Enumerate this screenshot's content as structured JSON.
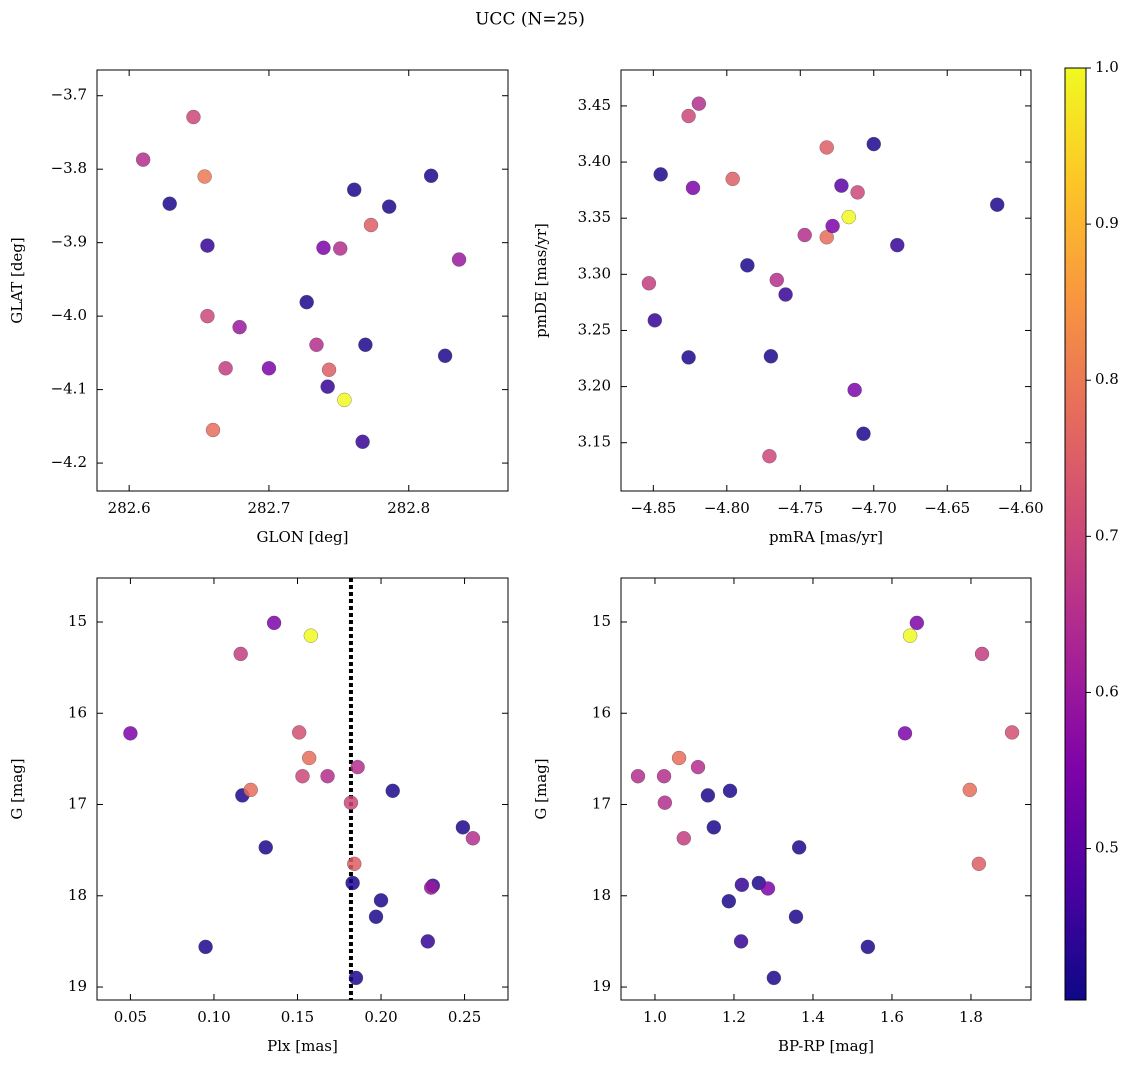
{
  "title": "UCC (N=25)",
  "chart_data": [
    {
      "type": "scatter",
      "x_label": "GLON [deg]",
      "y_label": "GLAT [deg]",
      "xlim": [
        282.577,
        282.871
      ],
      "ylim": [
        -4.238,
        -3.665
      ],
      "xticks": [
        282.6,
        282.7,
        282.8
      ],
      "yticks": [
        {
          "value": -3.7,
          "label": "−3.7"
        },
        {
          "value": -3.8,
          "label": "−3.8"
        },
        {
          "value": -3.9,
          "label": "−3.9"
        },
        {
          "value": -4.0,
          "label": "−4.0"
        },
        {
          "value": -4.1,
          "label": "−4.1"
        },
        {
          "value": -4.2,
          "label": "−4.2"
        }
      ],
      "x": [
        282.61,
        282.646,
        282.654,
        282.629,
        282.656,
        282.656,
        282.679,
        282.669,
        282.7,
        282.66,
        282.727,
        282.734,
        282.743,
        282.742,
        282.754,
        282.739,
        282.751,
        282.761,
        282.773,
        282.786,
        282.769,
        282.767,
        282.816,
        282.826,
        282.836
      ],
      "values": [
        -3.787,
        -3.729,
        -3.81,
        -3.847,
        -3.904,
        -4.0,
        -4.015,
        -4.071,
        -4.071,
        -4.155,
        -3.981,
        -4.039,
        -4.073,
        -4.096,
        -4.114,
        -3.907,
        -3.908,
        -3.828,
        -3.876,
        -3.851,
        -4.039,
        -4.171,
        -3.809,
        -4.054,
        -3.923
      ],
      "c": [
        0.65,
        0.7,
        0.8,
        0.42,
        0.45,
        0.7,
        0.6,
        0.68,
        0.55,
        0.78,
        0.42,
        0.65,
        0.75,
        0.45,
        1.0,
        0.55,
        0.65,
        0.42,
        0.75,
        0.42,
        0.42,
        0.45,
        0.42,
        0.42,
        0.6
      ]
    },
    {
      "type": "scatter",
      "x_label": "pmRA [mas/yr]",
      "y_label": "pmDE [mas/yr]",
      "xlim": [
        -4.872,
        -4.593
      ],
      "ylim": [
        3.107,
        3.482
      ],
      "xticks": [
        {
          "value": -4.85,
          "label": "−4.85"
        },
        {
          "value": -4.8,
          "label": "−4.80"
        },
        {
          "value": -4.75,
          "label": "−4.75"
        },
        {
          "value": -4.7,
          "label": "−4.70"
        },
        {
          "value": -4.65,
          "label": "−4.65"
        },
        {
          "value": -4.6,
          "label": "−4.60"
        }
      ],
      "yticks": [
        3.15,
        {
          "value": 3.2,
          "label": "3.20"
        },
        3.25,
        {
          "value": 3.3,
          "label": "3.30"
        },
        3.35,
        {
          "value": 3.4,
          "label": "3.40"
        },
        3.45
      ],
      "x": [
        -4.826,
        -4.819,
        -4.845,
        -4.823,
        -4.796,
        -4.849,
        -4.853,
        -4.826,
        -4.786,
        -4.766,
        -4.76,
        -4.77,
        -4.771,
        -4.747,
        -4.732,
        -4.732,
        -4.728,
        -4.722,
        -4.717,
        -4.711,
        -4.7,
        -4.713,
        -4.707,
        -4.684,
        -4.616
      ],
      "values": [
        3.441,
        3.452,
        3.389,
        3.377,
        3.385,
        3.259,
        3.292,
        3.226,
        3.308,
        3.295,
        3.282,
        3.227,
        3.138,
        3.335,
        3.333,
        3.413,
        3.343,
        3.379,
        3.351,
        3.373,
        3.416,
        3.197,
        3.158,
        3.326,
        3.362
      ],
      "c": [
        0.7,
        0.65,
        0.42,
        0.55,
        0.75,
        0.45,
        0.68,
        0.42,
        0.42,
        0.65,
        0.45,
        0.42,
        0.7,
        0.65,
        0.78,
        0.75,
        0.55,
        0.5,
        1.0,
        0.7,
        0.42,
        0.55,
        0.42,
        0.45,
        0.42
      ]
    },
    {
      "type": "scatter",
      "x_label": "Plx [mas]",
      "y_label": "G [mag]",
      "xlim": [
        0.03,
        0.276
      ],
      "ylim": [
        19.142,
        14.518
      ],
      "xticks": [
        0.05,
        {
          "value": 0.1,
          "label": "0.10"
        },
        0.15,
        {
          "value": 0.2,
          "label": "0.20"
        },
        0.25
      ],
      "yticks": [
        15,
        16,
        17,
        18,
        19
      ],
      "vline": 0.182,
      "x": [
        0.05,
        0.095,
        0.116,
        0.117,
        0.122,
        0.136,
        0.131,
        0.158,
        0.151,
        0.157,
        0.153,
        0.168,
        0.182,
        0.186,
        0.184,
        0.183,
        0.185,
        0.207,
        0.2,
        0.197,
        0.231,
        0.23,
        0.228,
        0.249,
        0.255
      ],
      "values": [
        16.22,
        18.56,
        15.35,
        16.9,
        16.84,
        15.01,
        17.47,
        15.15,
        16.21,
        16.49,
        16.69,
        16.69,
        16.98,
        16.59,
        17.65,
        17.86,
        18.9,
        16.85,
        18.05,
        18.23,
        17.89,
        17.91,
        18.5,
        17.25,
        17.37
      ],
      "c": [
        0.55,
        0.42,
        0.68,
        0.42,
        0.78,
        0.55,
        0.42,
        1.0,
        0.72,
        0.78,
        0.7,
        0.65,
        0.7,
        0.65,
        0.75,
        0.42,
        0.42,
        0.42,
        0.42,
        0.42,
        0.45,
        0.6,
        0.45,
        0.42,
        0.65
      ]
    },
    {
      "type": "scatter",
      "x_label": "BP-RP [mag]",
      "y_label": "G [mag]",
      "xlim": [
        0.914,
        1.952
      ],
      "ylim": [
        19.142,
        14.518
      ],
      "xticks": [
        {
          "value": 1,
          "label": "1.0"
        },
        1.2,
        1.4,
        1.6,
        1.8
      ],
      "yticks": [
        15,
        16,
        17,
        18,
        19
      ],
      "x": [
        0.957,
        1.023,
        1.025,
        1.061,
        1.073,
        1.109,
        1.134,
        1.19,
        1.149,
        1.187,
        1.22,
        1.218,
        1.263,
        1.286,
        1.301,
        1.365,
        1.357,
        1.539,
        1.633,
        1.646,
        1.663,
        1.797,
        1.82,
        1.828,
        1.904
      ],
      "values": [
        16.69,
        16.69,
        16.98,
        16.49,
        17.37,
        16.59,
        16.9,
        16.85,
        17.25,
        18.06,
        17.88,
        18.5,
        17.86,
        17.92,
        18.9,
        17.47,
        18.23,
        18.56,
        16.22,
        15.15,
        15.01,
        16.84,
        17.65,
        15.35,
        16.21
      ],
      "c": [
        0.65,
        0.65,
        0.65,
        0.78,
        0.68,
        0.65,
        0.42,
        0.42,
        0.42,
        0.42,
        0.45,
        0.45,
        0.42,
        0.55,
        0.42,
        0.42,
        0.42,
        0.42,
        0.55,
        1.0,
        0.55,
        0.78,
        0.75,
        0.68,
        0.72
      ]
    },
    {
      "type": "colorbar",
      "colormap": "plasma",
      "clim": [
        0.403,
        1.0
      ],
      "ticks": [
        0.5,
        0.6,
        0.7,
        0.8,
        0.9,
        {
          "value": 1,
          "label": "1.0"
        }
      ]
    }
  ]
}
